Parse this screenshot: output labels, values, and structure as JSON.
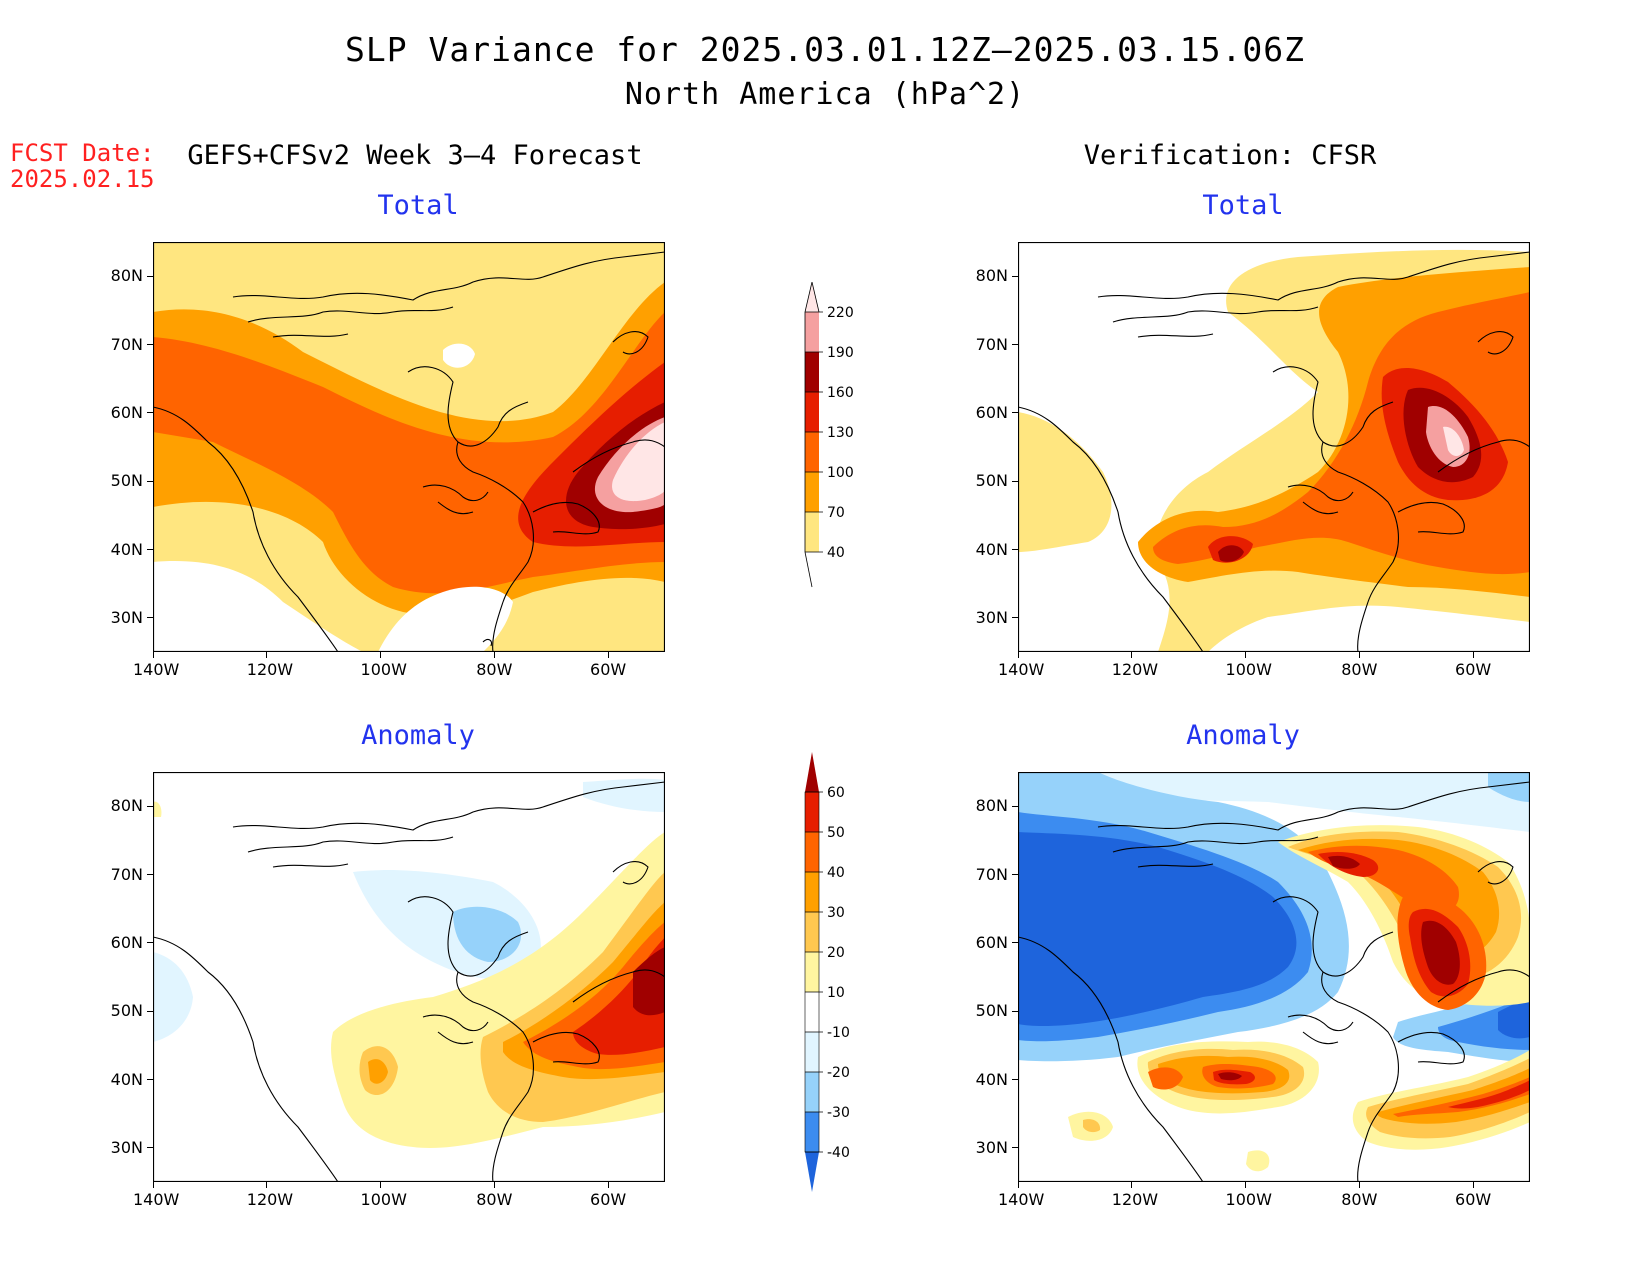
{
  "header": {
    "title": "SLP Variance for 2025.03.01.12Z–2025.03.15.06Z",
    "subtitle": "North America (hPa^2)",
    "fcst_label": "FCST Date:",
    "fcst_date": "2025.02.15",
    "left_column": "GEFS+CFSv2 Week 3–4 Forecast",
    "right_column": "Verification: CFSR"
  },
  "panels": {
    "forecast_total": {
      "title": "Total"
    },
    "verification_total": {
      "title": "Total"
    },
    "forecast_anomaly": {
      "title": "Anomaly"
    },
    "verification_anomaly": {
      "title": "Anomaly"
    }
  },
  "axes": {
    "lon_labels": [
      "140W",
      "120W",
      "100W",
      "80W",
      "60W"
    ],
    "lat_labels": [
      "80N",
      "70N",
      "60N",
      "50N",
      "40N",
      "30N"
    ],
    "lon_range": [
      -140,
      -50
    ],
    "lat_range": [
      25,
      85
    ]
  },
  "colorbars": {
    "total": {
      "levels": [
        "40",
        "70",
        "100",
        "130",
        "160",
        "190",
        "220"
      ],
      "colors": [
        "#ffe680",
        "#ffa000",
        "#ff6400",
        "#e61e00",
        "#a00000",
        "#f5a0a0",
        "#ffe6e6"
      ]
    },
    "anomaly": {
      "levels": [
        "-40",
        "-30",
        "-20",
        "-10",
        "10",
        "20",
        "30",
        "40",
        "50",
        "60"
      ],
      "colors": [
        "#1e64dc",
        "#3c8cf0",
        "#96d2fa",
        "#e1f5ff",
        "#ffffff",
        "#fff5a0",
        "#ffc850",
        "#ffa000",
        "#ff6400",
        "#e61e00",
        "#a00000"
      ]
    }
  }
}
